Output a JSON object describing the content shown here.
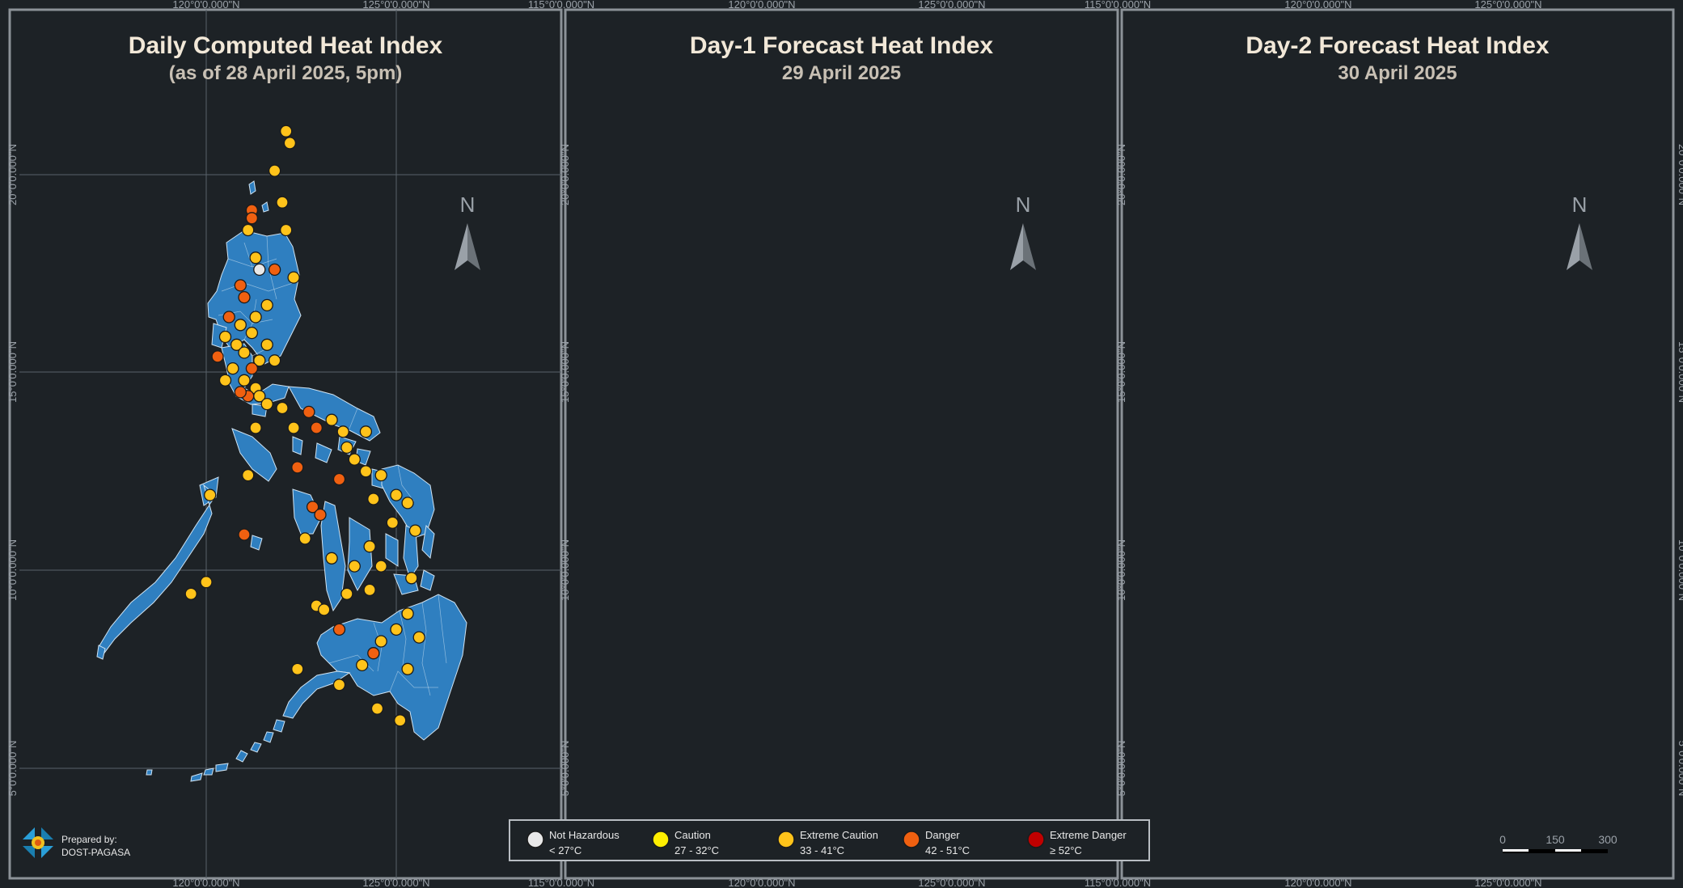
{
  "panels": [
    {
      "title": "Daily Computed Heat Index",
      "subtitle": "(as of 28 April 2025, 5pm)",
      "points": [
        [
          21.1,
          3
        ],
        [
          20.8,
          3
        ],
        [
          20.1,
          2
        ],
        [
          19.4,
          3
        ],
        [
          19.2,
          2
        ],
        [
          19.1,
          2
        ],
        [
          18.9,
          2
        ],
        [
          18.7,
          3
        ],
        [
          17.9,
          3
        ],
        [
          17.6,
          1
        ],
        [
          17.7,
          3
        ],
        [
          17.3,
          4
        ],
        [
          17.2,
          4
        ],
        [
          17.0,
          3
        ],
        [
          16.8,
          4
        ],
        [
          16.7,
          3
        ],
        [
          16.5,
          3
        ],
        [
          16.3,
          3
        ],
        [
          16.2,
          3
        ],
        [
          16.0,
          3
        ],
        [
          15.9,
          3
        ],
        [
          15.8,
          3
        ],
        [
          15.7,
          3
        ],
        [
          15.6,
          3
        ],
        [
          15.3,
          4
        ],
        [
          15.2,
          3
        ],
        [
          15.1,
          4
        ],
        [
          15.0,
          3
        ],
        [
          14.7,
          3
        ],
        [
          14.6,
          3
        ],
        [
          14.5,
          3
        ],
        [
          14.4,
          3
        ],
        [
          14.3,
          3
        ],
        [
          14.2,
          3
        ],
        [
          14.1,
          3
        ],
        [
          13.9,
          3
        ],
        [
          13.8,
          3
        ],
        [
          13.7,
          4
        ],
        [
          13.6,
          3
        ],
        [
          13.5,
          3
        ],
        [
          13.4,
          3
        ],
        [
          13.3,
          3
        ],
        [
          13.2,
          3
        ],
        [
          13.1,
          3
        ],
        [
          12.9,
          3
        ],
        [
          12.7,
          3
        ],
        [
          12.5,
          3
        ],
        [
          12.3,
          4
        ],
        [
          12.2,
          3
        ],
        [
          12.0,
          3
        ],
        [
          11.8,
          4
        ],
        [
          11.6,
          3
        ],
        [
          11.5,
          3
        ],
        [
          11.3,
          3
        ],
        [
          11.2,
          3
        ],
        [
          11.0,
          4
        ],
        [
          10.8,
          3
        ],
        [
          10.7,
          3
        ],
        [
          10.5,
          3
        ],
        [
          10.4,
          3
        ],
        [
          10.3,
          3
        ],
        [
          10.0,
          3
        ],
        [
          9.8,
          3
        ],
        [
          9.6,
          3
        ],
        [
          9.4,
          3
        ],
        [
          9.2,
          3
        ],
        [
          9.0,
          3
        ],
        [
          8.7,
          4
        ],
        [
          8.5,
          3
        ],
        [
          8.2,
          3
        ],
        [
          8.0,
          3
        ],
        [
          7.8,
          4
        ],
        [
          7.5,
          3
        ],
        [
          7.2,
          3
        ],
        [
          7.0,
          3
        ],
        [
          6.8,
          3
        ],
        [
          6.3,
          3
        ],
        [
          6.1,
          3
        ]
      ]
    },
    {
      "title": "Day-1 Forecast Heat Index",
      "subtitle": "29 April 2025",
      "points": []
    },
    {
      "title": "Day-2 Forecast Heat Index",
      "subtitle": "30 April 2025",
      "points": []
    }
  ],
  "axis_labels": {
    "lon_top": [
      "120°0'0.000\"N",
      "125°0'0.000\"N",
      "115°0'0.000\"N"
    ],
    "lon_bottom": [
      "120°0'0.000\"N",
      "125°0'0.000\"N",
      "115°0'0.000\"N"
    ],
    "lat": [
      "20°0'0.000\"N",
      "15°0'0.000\"N",
      "10°0'0.000\"N",
      "5°0'0.000\"N"
    ]
  },
  "north_label": "N",
  "credit": {
    "line1": "Prepared by:",
    "line2": "DOST-PAGASA"
  },
  "legend": [
    {
      "label": "Not Hazardous",
      "range": "< 27°C",
      "color": "#e8e8e8"
    },
    {
      "label": "Caution",
      "range": "27 - 32°C",
      "color": "#ffee00"
    },
    {
      "label": "Extreme Caution",
      "range": "33 - 41°C",
      "color": "#ffc31a"
    },
    {
      "label": "Danger",
      "range": "42 - 51°C",
      "color": "#f06010"
    },
    {
      "label": "Extreme Danger",
      "range": "≥ 52°C",
      "color": "#c00000"
    }
  ],
  "scale_bar": {
    "ticks": [
      "0",
      "150",
      "300"
    ]
  },
  "colors": {
    "background": "#1d2226",
    "land": "#2f7fc0",
    "land_border": "#cfe3f2",
    "grid": "#59626a",
    "frame": "#8c9298",
    "title": "#f2e8d8",
    "subtitle": "#c8c0b4",
    "label": "#9aa1a8"
  }
}
